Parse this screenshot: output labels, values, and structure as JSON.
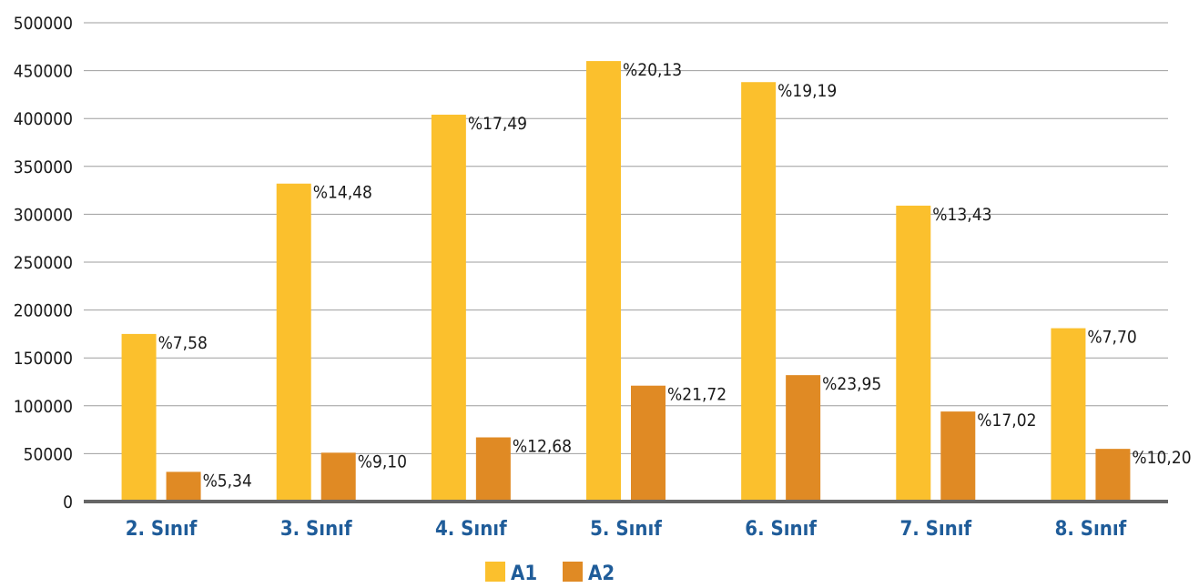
{
  "colors": {
    "A1": "#FBC02D",
    "A2": "#E08A24",
    "category_text": "#1F5C99",
    "legend_text": "#1F5C99",
    "grid": "#9e9e9e",
    "axis": "#666666"
  },
  "chart_data": {
    "type": "bar",
    "title": "",
    "xlabel": "",
    "ylabel": "",
    "ylim": [
      0,
      500000
    ],
    "yticks": [
      "0",
      "50000",
      "100000",
      "150000",
      "200000",
      "250000",
      "300000",
      "350000",
      "400000",
      "450000",
      "500000"
    ],
    "grid": true,
    "legend_position": "bottom",
    "categories": [
      "2. Sınıf",
      "3. Sınıf",
      "4. Sınıf",
      "5. Sınıf",
      "6. Sınıf",
      "7. Sınıf",
      "8. Sınıf"
    ],
    "series": [
      {
        "name": "A1",
        "values": [
          175000,
          332000,
          404000,
          460000,
          438000,
          309000,
          181000
        ],
        "labels": [
          "%7,58",
          "%14,48",
          "%17,49",
          "%20,13",
          "%19,19",
          "%13,43",
          "%7,70"
        ]
      },
      {
        "name": "A2",
        "values": [
          31000,
          51000,
          67000,
          121000,
          132000,
          94000,
          55000
        ],
        "labels": [
          "%5,34",
          "%9,10",
          "%12,68",
          "%21,72",
          "%23,95",
          "%17,02",
          "%10,20"
        ]
      }
    ]
  }
}
